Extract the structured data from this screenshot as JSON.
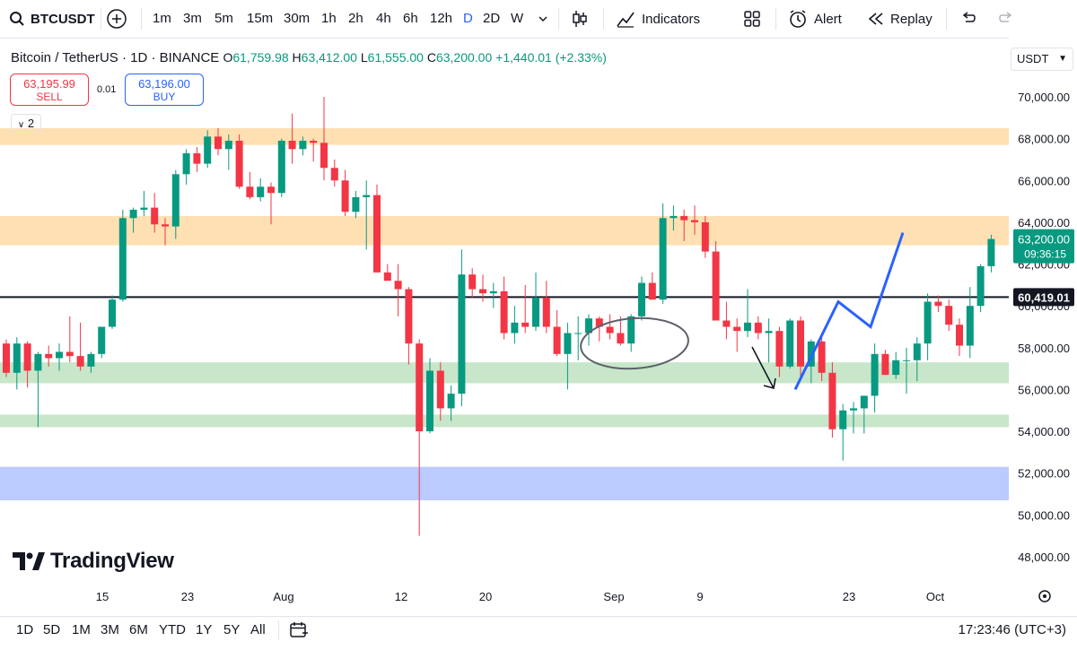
{
  "toolbar": {
    "symbol": "BTCUSDT",
    "timeframes": [
      "1m",
      "3m",
      "5m",
      "15m",
      "30m",
      "1h",
      "2h",
      "4h",
      "6h",
      "12h",
      "D",
      "2D",
      "W"
    ],
    "active_timeframe": "D",
    "indicators_label": "Indicators",
    "alert_label": "Alert",
    "replay_label": "Replay"
  },
  "legend": {
    "name": "Bitcoin / TetherUS · 1D · BINANCE",
    "open_label": "O",
    "open": "61,759.98",
    "high_label": "H",
    "high": "63,412.00",
    "low_label": "L",
    "low": "61,555.00",
    "close_label": "C",
    "close": "63,200.00",
    "change": "+1,440.01 (+2.33%)"
  },
  "trade": {
    "sell_price": "63,195.99",
    "sell_label": "SELL",
    "spread": "0.01",
    "buy_price": "63,196.00",
    "buy_label": "BUY"
  },
  "indicator_count": "2",
  "currency": "USDT",
  "price_axis": {
    "ticks": [
      "70,000.00",
      "68,000.00",
      "66,000.00",
      "64,000.00",
      "62,000.00",
      "60,000.00",
      "58,000.00",
      "56,000.00",
      "54,000.00",
      "52,000.00",
      "50,000.00",
      "48,000.00"
    ],
    "last_price": "63,200.00",
    "countdown": "09:36:15",
    "line_price": "60,419.01"
  },
  "time_axis": {
    "labels": [
      "15",
      "23",
      "Aug",
      "12",
      "20",
      "Sep",
      "9",
      "23",
      "Oct"
    ]
  },
  "chart_data": {
    "type": "candlestick",
    "x_start": "Jul 10",
    "up_color": "#089981",
    "down_color": "#f23645",
    "ylim": [
      47500,
      71500
    ],
    "candles": [
      [
        58200,
        58400,
        56600,
        56800
      ],
      [
        56800,
        58500,
        56000,
        58200
      ],
      [
        58200,
        58300,
        56100,
        56900
      ],
      [
        56900,
        57800,
        54200,
        57700
      ],
      [
        57700,
        58100,
        57100,
        57500
      ],
      [
        57500,
        58200,
        56900,
        57800
      ],
      [
        57800,
        59500,
        57300,
        57600
      ],
      [
        57600,
        59200,
        56900,
        57100
      ],
      [
        57100,
        57800,
        56800,
        57700
      ],
      [
        57700,
        59000,
        57500,
        59000
      ],
      [
        59000,
        60500,
        58900,
        60300
      ],
      [
        60300,
        64600,
        60200,
        64200
      ],
      [
        64200,
        64700,
        63500,
        64600
      ],
      [
        64600,
        65500,
        64300,
        64700
      ],
      [
        64700,
        65400,
        63500,
        63900
      ],
      [
        63900,
        64200,
        62900,
        63800
      ],
      [
        63800,
        66500,
        63200,
        66300
      ],
      [
        66300,
        67500,
        65800,
        67300
      ],
      [
        67300,
        67600,
        66400,
        66800
      ],
      [
        66800,
        68400,
        66600,
        68100
      ],
      [
        68100,
        68500,
        67200,
        67500
      ],
      [
        67500,
        68200,
        66500,
        67900
      ],
      [
        67900,
        68200,
        65600,
        65700
      ],
      [
        65700,
        66400,
        65100,
        65200
      ],
      [
        65200,
        66100,
        65000,
        65700
      ],
      [
        65700,
        65900,
        63900,
        65400
      ],
      [
        65400,
        68000,
        65200,
        67900
      ],
      [
        67900,
        69200,
        66800,
        67500
      ],
      [
        67500,
        68100,
        67200,
        67900
      ],
      [
        67900,
        68000,
        66900,
        67800
      ],
      [
        67800,
        70000,
        66000,
        66600
      ],
      [
        66600,
        67000,
        65700,
        66000
      ],
      [
        66000,
        66500,
        64300,
        64500
      ],
      [
        64500,
        65500,
        64200,
        65200
      ],
      [
        65200,
        66000,
        62700,
        65300
      ],
      [
        65300,
        65800,
        61800,
        61600
      ],
      [
        61600,
        62000,
        61300,
        61200
      ],
      [
        61200,
        62000,
        59500,
        60800
      ],
      [
        60800,
        60900,
        57200,
        58200
      ],
      [
        58200,
        58400,
        49000,
        54000
      ],
      [
        54000,
        57500,
        53900,
        56900
      ],
      [
        56900,
        57300,
        54500,
        55100
      ],
      [
        55100,
        56200,
        54500,
        55800
      ],
      [
        55800,
        62700,
        55200,
        61500
      ],
      [
        61500,
        61800,
        60400,
        60800
      ],
      [
        60800,
        61500,
        60200,
        60600
      ],
      [
        60600,
        61100,
        59900,
        60700
      ],
      [
        60700,
        61400,
        58400,
        58700
      ],
      [
        58700,
        60000,
        58200,
        59200
      ],
      [
        59200,
        61000,
        58700,
        59000
      ],
      [
        59000,
        61600,
        58800,
        60400
      ],
      [
        60400,
        61200,
        58700,
        59000
      ],
      [
        59000,
        59800,
        57600,
        57700
      ],
      [
        57700,
        59200,
        56000,
        58700
      ],
      [
        58700,
        59500,
        57400,
        58700
      ],
      [
        58700,
        59600,
        58100,
        59400
      ],
      [
        59400,
        59500,
        58300,
        59000
      ],
      [
        59000,
        59600,
        58400,
        58700
      ],
      [
        58700,
        59500,
        58100,
        58200
      ],
      [
        58200,
        59600,
        57800,
        59500
      ],
      [
        59500,
        61400,
        59300,
        61100
      ],
      [
        61100,
        61600,
        60300,
        60300
      ],
      [
        60300,
        64900,
        60100,
        64200
      ],
      [
        64200,
        64800,
        63600,
        64300
      ],
      [
        64300,
        64600,
        63100,
        64100
      ],
      [
        64100,
        64800,
        63400,
        64000
      ],
      [
        64000,
        64300,
        62300,
        62600
      ],
      [
        62600,
        63100,
        59300,
        59300
      ],
      [
        59300,
        60200,
        58400,
        59000
      ],
      [
        59000,
        59400,
        57800,
        58800
      ],
      [
        58800,
        60800,
        58500,
        59200
      ],
      [
        59200,
        59500,
        58400,
        58700
      ],
      [
        58700,
        59400,
        57300,
        58800
      ],
      [
        58800,
        59000,
        56600,
        57100
      ],
      [
        57100,
        59400,
        57000,
        59300
      ],
      [
        59300,
        59500,
        56600,
        57100
      ],
      [
        57100,
        58400,
        56300,
        58300
      ],
      [
        58300,
        58600,
        56400,
        56800
      ],
      [
        56800,
        57300,
        53700,
        54100
      ],
      [
        54100,
        55300,
        52600,
        55000
      ],
      [
        55000,
        55400,
        53900,
        55100
      ],
      [
        55100,
        55700,
        53900,
        55700
      ],
      [
        55700,
        58200,
        54900,
        57700
      ],
      [
        57700,
        57900,
        56700,
        56700
      ],
      [
        56700,
        57800,
        56500,
        57400
      ],
      [
        57400,
        58000,
        55800,
        57400
      ],
      [
        57400,
        58500,
        56400,
        58200
      ],
      [
        58200,
        60600,
        57400,
        60200
      ],
      [
        60200,
        60500,
        59700,
        60000
      ],
      [
        60000,
        60300,
        58800,
        59100
      ],
      [
        59100,
        59400,
        57600,
        58100
      ],
      [
        58100,
        60900,
        57500,
        60000
      ],
      [
        60000,
        62000,
        59700,
        61900
      ],
      [
        61900,
        63400,
        61600,
        63200
      ]
    ],
    "zones": [
      {
        "color": "orange",
        "from": 67700,
        "to": 68500
      },
      {
        "color": "orange",
        "from": 62900,
        "to": 64300
      },
      {
        "color": "green",
        "from": 56300,
        "to": 57300
      },
      {
        "color": "green",
        "from": 54200,
        "to": 54800
      },
      {
        "color": "blue",
        "from": 50700,
        "to": 52300
      }
    ],
    "horizontal_line": 60419.01,
    "projection_path": [
      [
        56000,
        60200
      ],
      [
        59000,
        63500
      ]
    ]
  },
  "bottombar": {
    "ranges": [
      "1D",
      "5D",
      "1M",
      "3M",
      "6M",
      "YTD",
      "1Y",
      "5Y",
      "All"
    ],
    "clock": "17:23:46 (UTC+3)"
  },
  "branding": {
    "logo_text": "TradingView"
  }
}
